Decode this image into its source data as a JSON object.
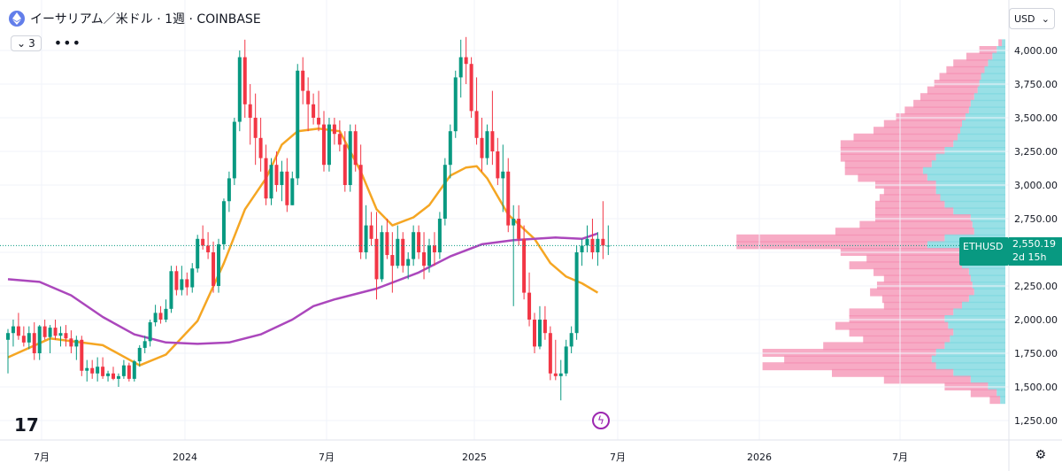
{
  "header": {
    "title": "イーサリアム／米ドル · 1週 · COINBASE",
    "indicator_count": "3",
    "currency": "USD"
  },
  "price_tag": {
    "symbol": "ETHUSD",
    "price": "2,550.19",
    "countdown": "2d 15h"
  },
  "colors": {
    "up": "#089981",
    "down": "#f23645",
    "ma_fast": "#f5a623",
    "ma_slow": "#ab47bc",
    "vp_up": "#7fd8e0",
    "vp_down": "#f48fb1"
  },
  "chart_data": {
    "type": "candlestick",
    "y_axis": {
      "ylim": [
        1250,
        4080
      ],
      "ticks": [
        "1,250.00",
        "1,500.00",
        "1,750.00",
        "2,000.00",
        "2,250.00",
        "2,500.00",
        "2,750.00",
        "3,000.00",
        "3,250.00",
        "3,500.00",
        "3,750.00",
        "4,000.00"
      ]
    },
    "x_axis": {
      "ticks": [
        "7月",
        "2024",
        "7月",
        "2025",
        "7月",
        "2026",
        "7月"
      ]
    },
    "last_price": 2550.19,
    "series": [
      {
        "name": "price",
        "points": [
          [
            1850,
            1930,
            1600,
            1900
          ],
          [
            1900,
            2000,
            1800,
            1950
          ],
          [
            1950,
            2050,
            1850,
            1880
          ],
          [
            1880,
            1950,
            1800,
            1830
          ],
          [
            1830,
            1950,
            1780,
            1900
          ],
          [
            1900,
            1980,
            1700,
            1750
          ],
          [
            1750,
            1960,
            1700,
            1950
          ],
          [
            1950,
            2000,
            1850,
            1870
          ],
          [
            1870,
            1960,
            1750,
            1940
          ],
          [
            1940,
            2000,
            1850,
            1880
          ],
          [
            1880,
            1950,
            1800,
            1900
          ],
          [
            1900,
            1960,
            1800,
            1860
          ],
          [
            1860,
            1920,
            1750,
            1800
          ],
          [
            1800,
            1880,
            1700,
            1850
          ],
          [
            1850,
            1880,
            1580,
            1620
          ],
          [
            1620,
            1700,
            1540,
            1640
          ],
          [
            1640,
            1700,
            1560,
            1600
          ],
          [
            1600,
            1720,
            1540,
            1650
          ],
          [
            1650,
            1720,
            1560,
            1580
          ],
          [
            1580,
            1620,
            1540,
            1600
          ],
          [
            1600,
            1650,
            1550,
            1560
          ],
          [
            1560,
            1600,
            1500,
            1580
          ],
          [
            1580,
            1700,
            1560,
            1660
          ],
          [
            1660,
            1680,
            1540,
            1560
          ],
          [
            1560,
            1700,
            1540,
            1690
          ],
          [
            1690,
            1810,
            1650,
            1790
          ],
          [
            1790,
            1880,
            1750,
            1840
          ],
          [
            1840,
            2000,
            1800,
            1980
          ],
          [
            1980,
            2110,
            1950,
            2050
          ],
          [
            2050,
            2100,
            1970,
            2000
          ],
          [
            2000,
            2150,
            1980,
            2080
          ],
          [
            2080,
            2400,
            2050,
            2360
          ],
          [
            2360,
            2400,
            2180,
            2220
          ],
          [
            2220,
            2400,
            2180,
            2300
          ],
          [
            2300,
            2350,
            2180,
            2240
          ],
          [
            2240,
            2420,
            2200,
            2380
          ],
          [
            2380,
            2630,
            2350,
            2600
          ],
          [
            2600,
            2700,
            2520,
            2550
          ],
          [
            2550,
            2650,
            2450,
            2500
          ],
          [
            2500,
            2580,
            2200,
            2250
          ],
          [
            2250,
            2600,
            2200,
            2560
          ],
          [
            2560,
            2900,
            2520,
            2880
          ],
          [
            2880,
            3100,
            2800,
            3050
          ],
          [
            3050,
            3500,
            3000,
            3470
          ],
          [
            3470,
            4000,
            3400,
            3950
          ],
          [
            3950,
            4080,
            3500,
            3600
          ],
          [
            3600,
            3750,
            3300,
            3500
          ],
          [
            3500,
            3680,
            3150,
            3350
          ],
          [
            3350,
            3500,
            3100,
            3200
          ],
          [
            3200,
            3300,
            2850,
            2900
          ],
          [
            2900,
            3200,
            2850,
            3150
          ],
          [
            3150,
            3250,
            2950,
            3000
          ],
          [
            3000,
            3180,
            2880,
            3100
          ],
          [
            3100,
            3200,
            2800,
            2850
          ],
          [
            2850,
            3100,
            2850,
            3050
          ],
          [
            3050,
            3900,
            3000,
            3850
          ],
          [
            3850,
            3950,
            3600,
            3700
          ],
          [
            3700,
            3800,
            3400,
            3600
          ],
          [
            3600,
            3680,
            3450,
            3500
          ],
          [
            3500,
            3700,
            3400,
            3450
          ],
          [
            3450,
            3550,
            3100,
            3150
          ],
          [
            3150,
            3500,
            3100,
            3450
          ],
          [
            3450,
            3500,
            3300,
            3380
          ],
          [
            3380,
            3480,
            3250,
            3300
          ],
          [
            3300,
            3400,
            2950,
            3000
          ],
          [
            3000,
            3450,
            2950,
            3400
          ],
          [
            3400,
            3450,
            3100,
            3150
          ],
          [
            3150,
            3300,
            2450,
            2500
          ],
          [
            2500,
            2850,
            2450,
            2700
          ],
          [
            2700,
            2800,
            2550,
            2600
          ],
          [
            2600,
            2800,
            2150,
            2300
          ],
          [
            2300,
            2700,
            2280,
            2650
          ],
          [
            2650,
            2750,
            2450,
            2480
          ],
          [
            2480,
            2650,
            2200,
            2400
          ],
          [
            2400,
            2700,
            2380,
            2600
          ],
          [
            2600,
            2650,
            2350,
            2400
          ],
          [
            2400,
            2500,
            2300,
            2450
          ],
          [
            2450,
            2700,
            2400,
            2650
          ],
          [
            2650,
            2700,
            2450,
            2500
          ],
          [
            2500,
            2650,
            2300,
            2400
          ],
          [
            2400,
            2600,
            2350,
            2550
          ],
          [
            2550,
            2650,
            2400,
            2500
          ],
          [
            2500,
            2800,
            2450,
            2750
          ],
          [
            2750,
            3200,
            2700,
            3150
          ],
          [
            3150,
            3450,
            3050,
            3400
          ],
          [
            3400,
            3850,
            3350,
            3800
          ],
          [
            3800,
            4080,
            3650,
            3950
          ],
          [
            3950,
            4100,
            3750,
            3900
          ],
          [
            3900,
            3950,
            3500,
            3550
          ],
          [
            3550,
            3800,
            3300,
            3350
          ],
          [
            3350,
            3500,
            3100,
            3200
          ],
          [
            3200,
            3450,
            3150,
            3400
          ],
          [
            3400,
            3700,
            3150,
            3250
          ],
          [
            3250,
            3350,
            3000,
            3050
          ],
          [
            3050,
            3300,
            2800,
            3100
          ],
          [
            3100,
            3200,
            2650,
            2700
          ],
          [
            2700,
            2850,
            2100,
            2750
          ],
          [
            2750,
            2850,
            2550,
            2600
          ],
          [
            2600,
            2700,
            2150,
            2200
          ],
          [
            2200,
            2350,
            1950,
            2000
          ],
          [
            2000,
            2050,
            1750,
            1800
          ],
          [
            1800,
            2100,
            1780,
            2000
          ],
          [
            2000,
            2100,
            1850,
            1900
          ],
          [
            1900,
            1950,
            1550,
            1600
          ],
          [
            1600,
            1850,
            1550,
            1580
          ],
          [
            1580,
            1700,
            1400,
            1600
          ],
          [
            1600,
            1850,
            1580,
            1800
          ],
          [
            1800,
            1950,
            1750,
            1900
          ],
          [
            1900,
            2550,
            1850,
            2500
          ],
          [
            2500,
            2600,
            2400,
            2550
          ],
          [
            2550,
            2700,
            2500,
            2600
          ],
          [
            2600,
            2750,
            2450,
            2500
          ],
          [
            2500,
            2650,
            2400,
            2600
          ],
          [
            2600,
            2880,
            2450,
            2550
          ],
          [
            2550,
            2700,
            2480,
            2550
          ]
        ]
      },
      {
        "name": "MA_fast",
        "points": [
          [
            0,
            1720
          ],
          [
            8,
            1860
          ],
          [
            18,
            1810
          ],
          [
            25,
            1660
          ],
          [
            30,
            1740
          ],
          [
            36,
            1990
          ],
          [
            41,
            2420
          ],
          [
            45,
            2820
          ],
          [
            49,
            3050
          ],
          [
            52,
            3300
          ],
          [
            55,
            3400
          ],
          [
            59,
            3420
          ],
          [
            63,
            3400
          ],
          [
            67,
            3100
          ],
          [
            70,
            2820
          ],
          [
            73,
            2700
          ],
          [
            77,
            2760
          ],
          [
            80,
            2850
          ],
          [
            84,
            3070
          ],
          [
            87,
            3130
          ],
          [
            89,
            3140
          ],
          [
            91,
            3050
          ],
          [
            95,
            2780
          ],
          [
            100,
            2600
          ],
          [
            103,
            2420
          ],
          [
            106,
            2320
          ],
          [
            109,
            2270
          ],
          [
            112,
            2200
          ]
        ]
      },
      {
        "name": "MA_slow",
        "points": [
          [
            0,
            2300
          ],
          [
            6,
            2280
          ],
          [
            12,
            2180
          ],
          [
            18,
            2020
          ],
          [
            24,
            1890
          ],
          [
            30,
            1830
          ],
          [
            36,
            1820
          ],
          [
            42,
            1830
          ],
          [
            48,
            1890
          ],
          [
            54,
            2000
          ],
          [
            58,
            2100
          ],
          [
            62,
            2150
          ],
          [
            70,
            2230
          ],
          [
            78,
            2350
          ],
          [
            84,
            2470
          ],
          [
            90,
            2560
          ],
          [
            96,
            2590
          ],
          [
            104,
            2610
          ],
          [
            109,
            2600
          ],
          [
            112,
            2640
          ]
        ]
      }
    ],
    "volume_profile": [
      [
        4050,
        4,
        4
      ],
      [
        4000,
        10,
        20
      ],
      [
        3950,
        15,
        30
      ],
      [
        3900,
        20,
        40
      ],
      [
        3850,
        24,
        44
      ],
      [
        3800,
        28,
        48
      ],
      [
        3750,
        30,
        52
      ],
      [
        3700,
        32,
        58
      ],
      [
        3650,
        36,
        62
      ],
      [
        3600,
        40,
        66
      ],
      [
        3550,
        42,
        74
      ],
      [
        3500,
        46,
        80
      ],
      [
        3450,
        50,
        90
      ],
      [
        3400,
        52,
        100
      ],
      [
        3350,
        55,
        120
      ],
      [
        3300,
        60,
        130
      ],
      [
        3250,
        70,
        120
      ],
      [
        3200,
        80,
        110
      ],
      [
        3150,
        85,
        100
      ],
      [
        3100,
        95,
        90
      ],
      [
        3050,
        90,
        80
      ],
      [
        3000,
        80,
        70
      ],
      [
        2950,
        80,
        60
      ],
      [
        2900,
        75,
        70
      ],
      [
        2850,
        70,
        80
      ],
      [
        2800,
        60,
        90
      ],
      [
        2750,
        40,
        110
      ],
      [
        2700,
        38,
        130
      ],
      [
        2650,
        36,
        160
      ],
      [
        2600,
        70,
        240
      ],
      [
        2550,
        90,
        220
      ],
      [
        2500,
        50,
        140
      ],
      [
        2450,
        40,
        120
      ],
      [
        2400,
        50,
        130
      ],
      [
        2350,
        42,
        110
      ],
      [
        2300,
        40,
        100
      ],
      [
        2250,
        38,
        110
      ],
      [
        2200,
        36,
        120
      ],
      [
        2150,
        42,
        100
      ],
      [
        2100,
        50,
        90
      ],
      [
        2050,
        60,
        120
      ],
      [
        2000,
        70,
        110
      ],
      [
        1950,
        66,
        130
      ],
      [
        1900,
        60,
        120
      ],
      [
        1850,
        64,
        100
      ],
      [
        1800,
        70,
        140
      ],
      [
        1750,
        80,
        200
      ],
      [
        1700,
        85,
        170
      ],
      [
        1650,
        80,
        200
      ],
      [
        1600,
        60,
        140
      ],
      [
        1550,
        40,
        100
      ],
      [
        1500,
        20,
        50
      ],
      [
        1450,
        10,
        30
      ],
      [
        1400,
        6,
        12
      ]
    ]
  }
}
